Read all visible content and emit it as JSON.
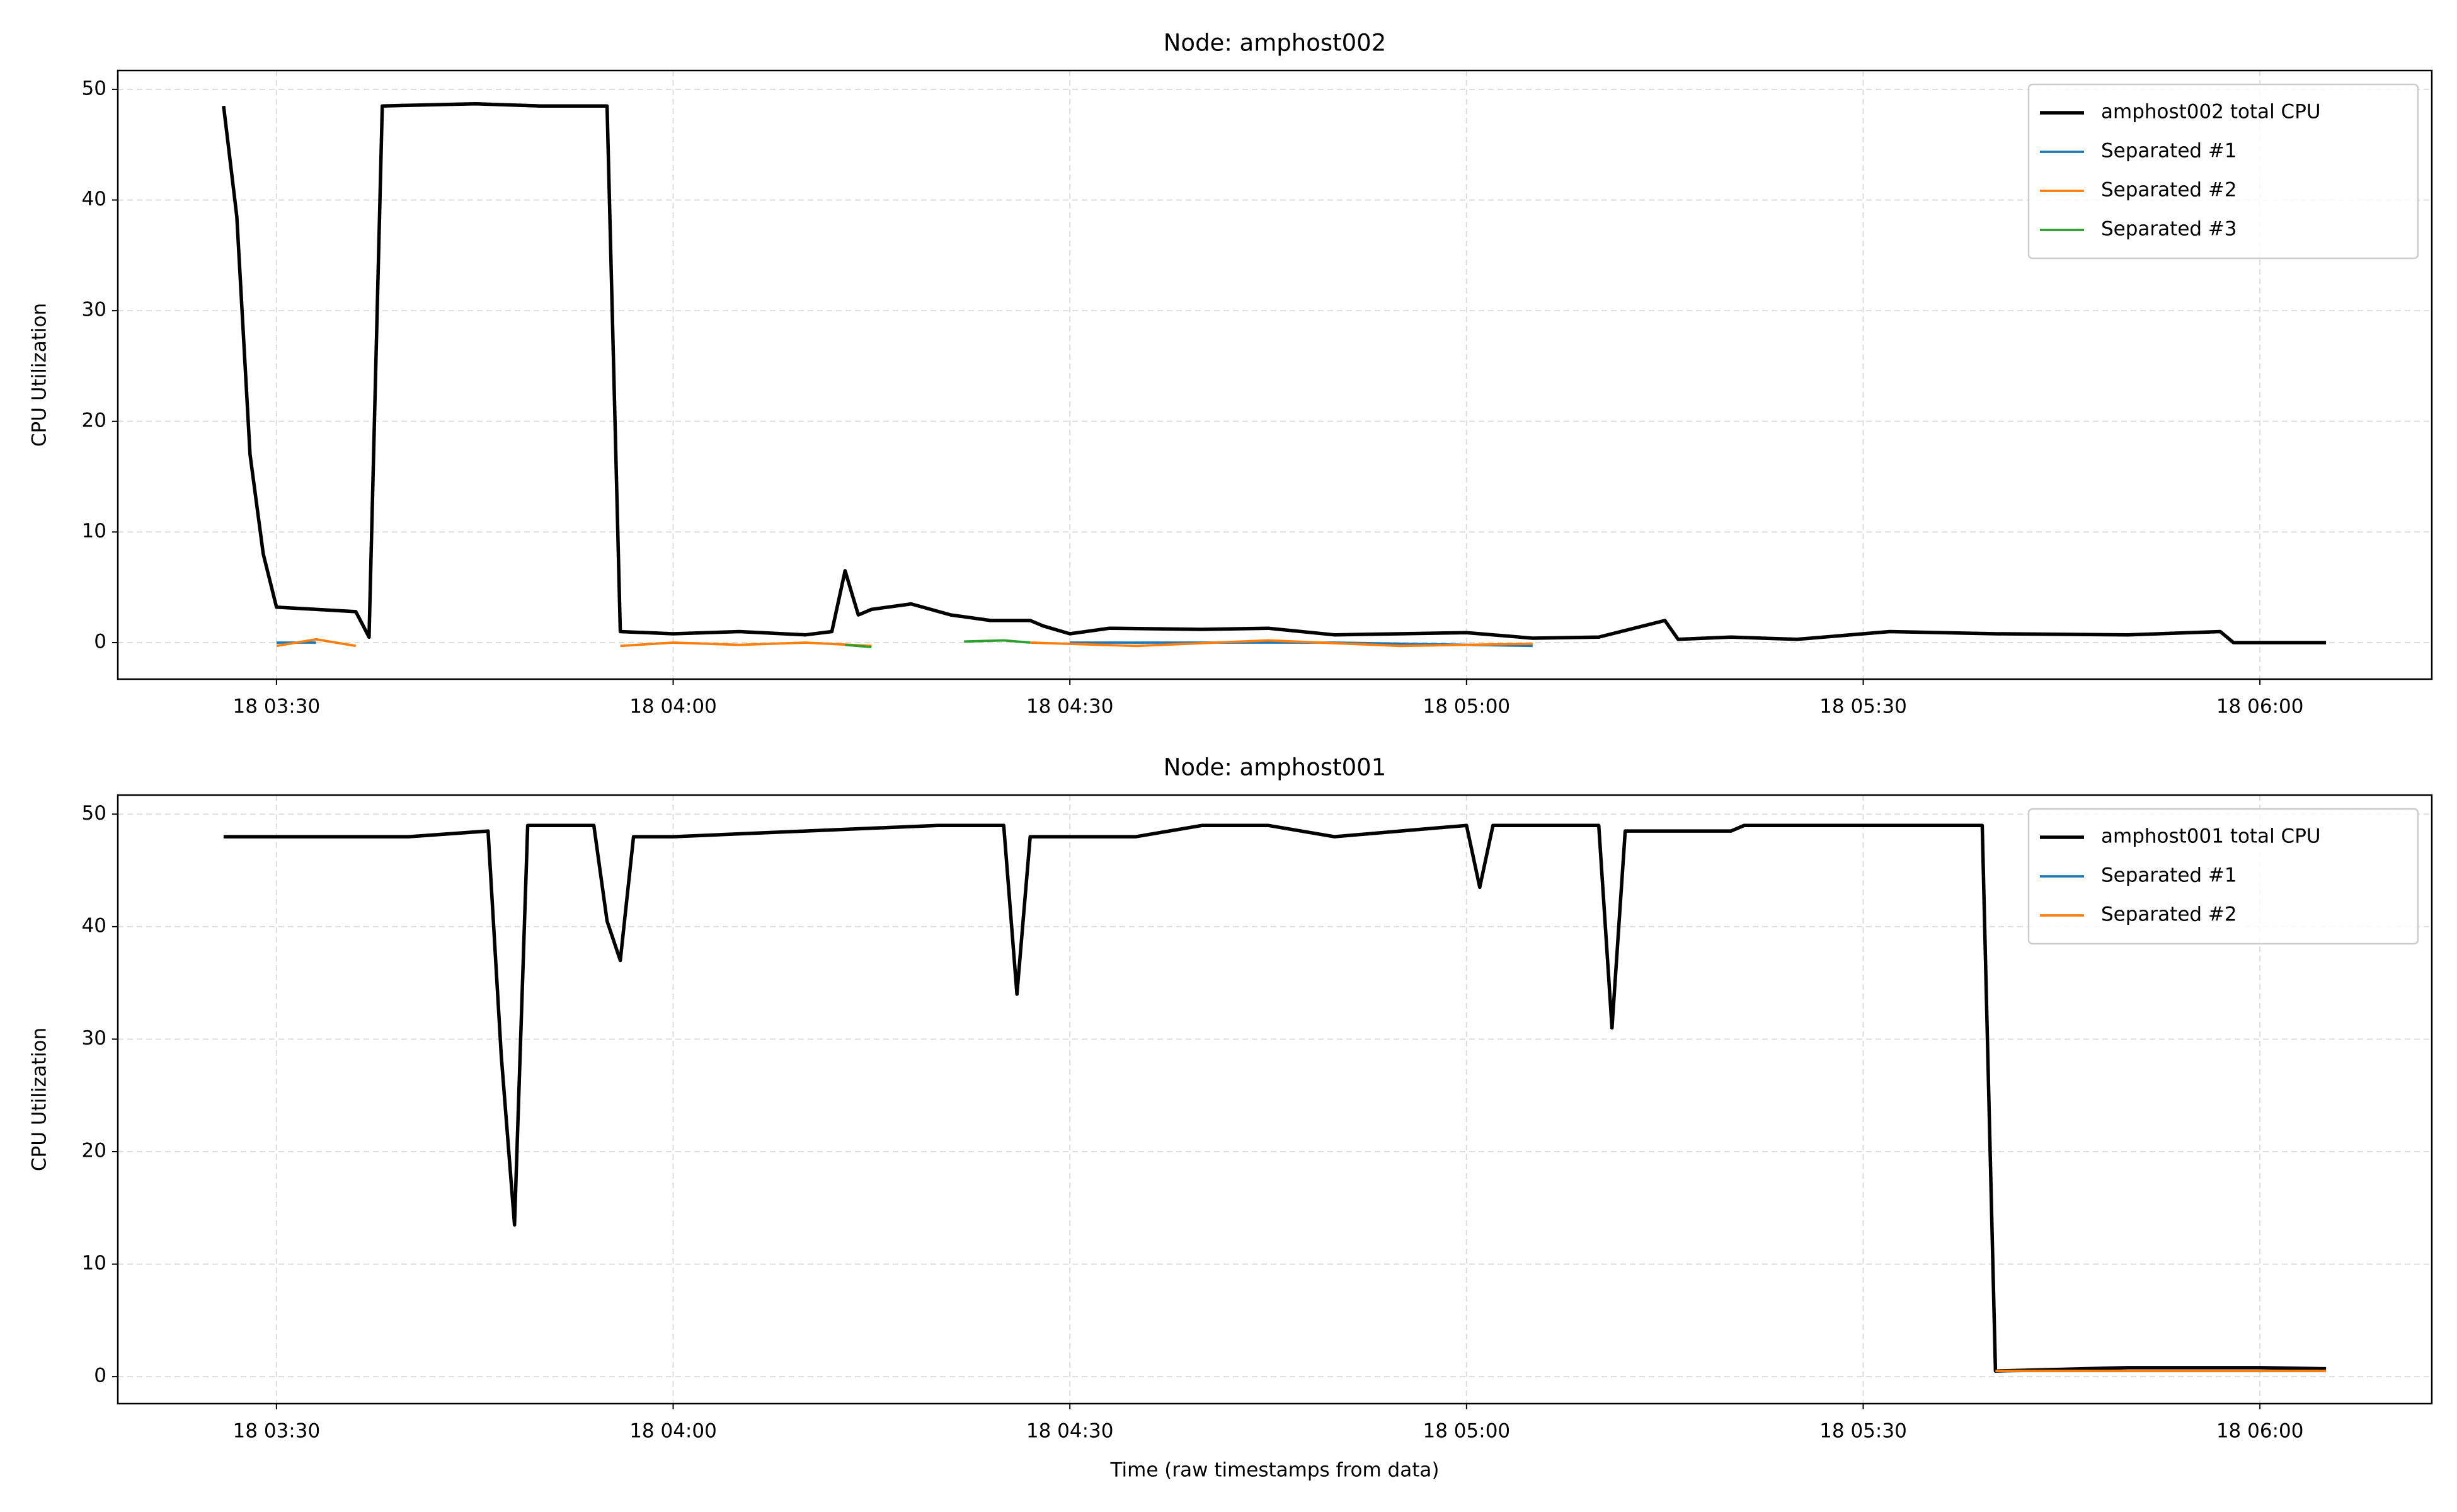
{
  "chart_data": [
    {
      "type": "line",
      "title": "Node: amphost002",
      "ylabel": "CPU Utilization",
      "xlim": [
        "18 03:18",
        "18 06:13"
      ],
      "ylim": [
        -3.3,
        51.7
      ],
      "xticks": [
        "18 03:30",
        "18 04:00",
        "18 04:30",
        "18 05:00",
        "18 05:30",
        "18 06:00"
      ],
      "yticks": [
        0,
        10,
        20,
        30,
        40,
        50
      ],
      "grid": true,
      "legend": "upper right",
      "series": [
        {
          "name": "amphost002 total CPU",
          "color": "#000000",
          "x": [
            "18 03:26",
            "18 03:27",
            "18 03:28",
            "18 03:29",
            "18 03:30",
            "18 03:33",
            "18 03:36",
            "18 03:37",
            "18 03:38",
            "18 03:45",
            "18 03:50",
            "18 03:55",
            "18 03:56",
            "18 04:00",
            "18 04:05",
            "18 04:10",
            "18 04:12",
            "18 04:13",
            "18 04:14",
            "18 04:15",
            "18 04:18",
            "18 04:21",
            "18 04:24",
            "18 04:27",
            "18 04:28",
            "18 04:30",
            "18 04:33",
            "18 04:40",
            "18 04:45",
            "18 04:50",
            "18 04:55",
            "18 05:00",
            "18 05:05",
            "18 05:10",
            "18 05:15",
            "18 05:16",
            "18 05:20",
            "18 05:25",
            "18 05:32",
            "18 05:40",
            "18 05:50",
            "18 05:57",
            "18 05:58",
            "18 06:05"
          ],
          "values": [
            48.5,
            38.5,
            17,
            8,
            3.2,
            3,
            2.8,
            0.5,
            48.5,
            48.7,
            48.5,
            48.5,
            1,
            0.8,
            1,
            0.7,
            1,
            6.5,
            2.5,
            3,
            3.5,
            2.5,
            2,
            2,
            1.5,
            0.8,
            1.3,
            1.2,
            1.3,
            0.7,
            0.8,
            0.9,
            0.4,
            0.5,
            2,
            0.3,
            0.5,
            0.3,
            1,
            0.8,
            0.7,
            1,
            0,
            0
          ]
        },
        {
          "name": "Separated #1",
          "color": "#1f77b4",
          "x": [
            "18 03:30",
            "18 03:33",
            "18 03:34",
            "18 04:30",
            "18 04:50",
            "18 05:05"
          ],
          "values": [
            0,
            0,
            null,
            0,
            0,
            -0.3
          ]
        },
        {
          "name": "Separated #2",
          "color": "#ff7f0e",
          "x": [
            "18 03:30",
            "18 03:33",
            "18 03:36",
            "18 03:37",
            "18 03:56",
            "18 04:00",
            "18 04:05",
            "18 04:10",
            "18 04:15",
            "18 04:16",
            "18 04:27",
            "18 04:35",
            "18 04:45",
            "18 04:55",
            "18 05:05"
          ],
          "values": [
            -0.3,
            0.3,
            -0.3,
            null,
            -0.3,
            0,
            -0.2,
            0,
            -0.3,
            null,
            0,
            -0.3,
            0.2,
            -0.3,
            -0.1
          ]
        },
        {
          "name": "Separated #3",
          "color": "#2ca02c",
          "x": [
            "18 04:13",
            "18 04:15",
            "18 04:16",
            "18 04:22",
            "18 04:25",
            "18 04:27"
          ],
          "values": [
            -0.2,
            -0.4,
            null,
            0.1,
            0.2,
            0
          ]
        }
      ]
    },
    {
      "type": "line",
      "title": "Node: amphost001",
      "ylabel": "CPU Utilization",
      "xlabel": "Time (raw timestamps from data)",
      "xlim": [
        "18 03:18",
        "18 06:13"
      ],
      "ylim": [
        -2.4,
        51.7
      ],
      "xticks": [
        "18 03:30",
        "18 04:00",
        "18 04:30",
        "18 05:00",
        "18 05:30",
        "18 06:00"
      ],
      "yticks": [
        0,
        10,
        20,
        30,
        40,
        50
      ],
      "grid": true,
      "legend": "upper right",
      "series": [
        {
          "name": "amphost001 total CPU",
          "color": "#000000",
          "x": [
            "18 03:26",
            "18 03:30",
            "18 03:40",
            "18 03:46",
            "18 03:47",
            "18 03:48",
            "18 03:49",
            "18 03:54",
            "18 03:55",
            "18 03:56",
            "18 03:57",
            "18 04:00",
            "18 04:10",
            "18 04:20",
            "18 04:25",
            "18 04:26",
            "18 04:27",
            "18 04:35",
            "18 04:40",
            "18 04:45",
            "18 04:50",
            "18 04:55",
            "18 05:00",
            "18 05:01",
            "18 05:02",
            "18 05:10",
            "18 05:11",
            "18 05:12",
            "18 05:20",
            "18 05:21",
            "18 05:30",
            "18 05:39",
            "18 05:40",
            "18 05:50",
            "18 06:00",
            "18 06:05"
          ],
          "values": [
            48,
            48,
            48,
            48.5,
            28.5,
            13.5,
            49,
            49,
            40.5,
            37,
            48,
            48,
            48.5,
            49,
            49,
            34,
            48,
            48,
            49,
            49,
            48,
            48.5,
            49,
            43.5,
            49,
            49,
            31,
            48.5,
            48.5,
            49,
            49,
            49,
            0.5,
            0.8,
            0.8,
            0.7
          ]
        },
        {
          "name": "Separated #1",
          "color": "#1f77b4",
          "x": [
            "18 05:40",
            "18 06:05"
          ],
          "values": [
            0.5,
            0.5
          ]
        },
        {
          "name": "Separated #2",
          "color": "#ff7f0e",
          "x": [
            "18 05:40",
            "18 06:05"
          ],
          "values": [
            0.5,
            0.5
          ]
        }
      ]
    }
  ]
}
